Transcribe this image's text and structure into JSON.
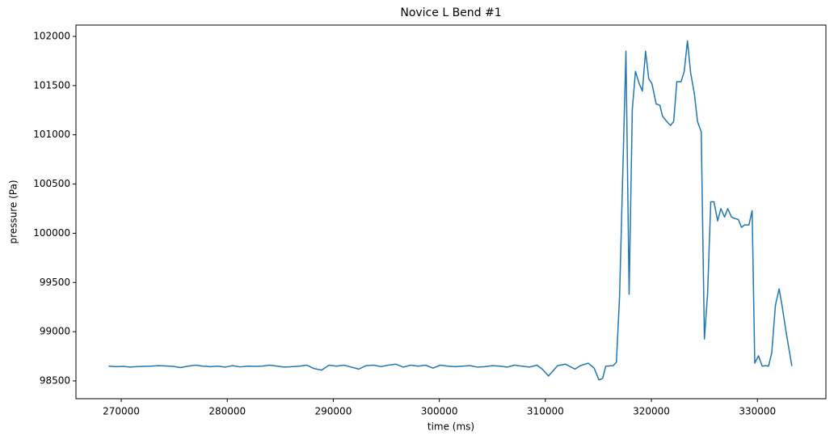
{
  "chart_data": {
    "type": "line",
    "title": "Novice L Bend #1",
    "xlabel": "time (ms)",
    "ylabel": "pressure (Pa)",
    "color": "#1f77b4",
    "x": [
      268800,
      269500,
      270200,
      270800,
      271400,
      272100,
      272800,
      273500,
      274200,
      274900,
      275600,
      276300,
      277000,
      277700,
      278400,
      279100,
      279800,
      280500,
      281200,
      281900,
      282600,
      283300,
      284000,
      284700,
      285400,
      286100,
      286800,
      287500,
      288200,
      288900,
      289600,
      290300,
      291000,
      291700,
      292400,
      293100,
      293800,
      294500,
      295200,
      295900,
      296600,
      297300,
      298000,
      298700,
      299400,
      300100,
      300800,
      301500,
      302200,
      302900,
      303600,
      304300,
      305000,
      305700,
      306400,
      307100,
      307800,
      308500,
      309200,
      309700,
      310300,
      311150,
      311900,
      312800,
      313300,
      314050,
      314600,
      315050,
      315400,
      315700,
      316400,
      316700,
      317000,
      317600,
      317900,
      318200,
      318500,
      318850,
      319150,
      319450,
      319750,
      320050,
      320450,
      320800,
      321050,
      321450,
      321800,
      322100,
      322400,
      322800,
      323100,
      323400,
      323700,
      324050,
      324350,
      324700,
      325000,
      325300,
      325600,
      325900,
      326250,
      326550,
      326900,
      327200,
      327550,
      327850,
      328200,
      328500,
      328800,
      329200,
      329500,
      329750,
      330100,
      330450,
      330750,
      331050,
      331350,
      331700,
      332050,
      332350,
      332700,
      333250
    ],
    "values": [
      98650,
      98645,
      98648,
      98640,
      98645,
      98648,
      98650,
      98655,
      98652,
      98648,
      98635,
      98650,
      98660,
      98650,
      98645,
      98650,
      98640,
      98655,
      98642,
      98650,
      98648,
      98650,
      98660,
      98650,
      98640,
      98645,
      98650,
      98660,
      98625,
      98610,
      98660,
      98650,
      98660,
      98640,
      98620,
      98655,
      98660,
      98645,
      98660,
      98670,
      98640,
      98660,
      98650,
      98660,
      98630,
      98660,
      98650,
      98645,
      98650,
      98655,
      98640,
      98645,
      98655,
      98650,
      98640,
      98660,
      98650,
      98640,
      98660,
      98620,
      98550,
      98655,
      98670,
      98620,
      98655,
      98680,
      98630,
      98510,
      98525,
      98650,
      98655,
      98690,
      99360,
      101850,
      99380,
      101260,
      101645,
      101520,
      101445,
      101850,
      101570,
      101520,
      101315,
      101300,
      101190,
      101135,
      101095,
      101135,
      101540,
      101540,
      101645,
      101955,
      101630,
      101420,
      101135,
      101030,
      98925,
      99385,
      100320,
      100320,
      100125,
      100250,
      100165,
      100250,
      100165,
      100150,
      100140,
      100060,
      100085,
      100085,
      100230,
      98680,
      98755,
      98650,
      98655,
      98650,
      98785,
      99270,
      99435,
      99245,
      99000,
      98650
    ],
    "xlim": [
      265730,
      336460
    ],
    "ylim": [
      98319,
      102115
    ],
    "xticks": [
      270000,
      280000,
      290000,
      300000,
      310000,
      320000,
      330000
    ],
    "yticks": [
      98500,
      99000,
      99500,
      100000,
      100500,
      101000,
      101500,
      102000
    ]
  }
}
